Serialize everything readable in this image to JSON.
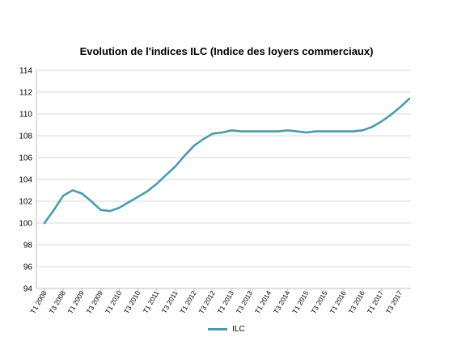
{
  "chart_data": {
    "type": "line",
    "title": "Evolution de l'indices ILC (Indice des loyers commerciaux)",
    "xlabel": "",
    "ylabel": "",
    "ylim": [
      94,
      114
    ],
    "yticks": [
      94,
      96,
      98,
      100,
      102,
      104,
      106,
      108,
      110,
      112,
      114
    ],
    "grid": true,
    "legend_position": "bottom",
    "x_tick_labels": [
      "T1 2008",
      "T3 2008",
      "T1 2009",
      "T3 2009",
      "T1 2010",
      "T3 2010",
      "T1 2011",
      "T3 2011",
      "T1 2012",
      "T3 2012",
      "T1 2013",
      "T3 2013",
      "T1 2014",
      "T3 2014",
      "T1 2015",
      "T3 2015",
      "T1 2016",
      "T3 2016",
      "T1 2017",
      "T3 2017"
    ],
    "x": [
      "T1 2008",
      "T2 2008",
      "T3 2008",
      "T4 2008",
      "T1 2009",
      "T2 2009",
      "T3 2009",
      "T4 2009",
      "T1 2010",
      "T2 2010",
      "T3 2010",
      "T4 2010",
      "T1 2011",
      "T2 2011",
      "T3 2011",
      "T4 2011",
      "T1 2012",
      "T2 2012",
      "T3 2012",
      "T4 2012",
      "T1 2013",
      "T2 2013",
      "T3 2013",
      "T4 2013",
      "T1 2014",
      "T2 2014",
      "T3 2014",
      "T4 2014",
      "T1 2015",
      "T2 2015",
      "T3 2015",
      "T4 2015",
      "T1 2016",
      "T2 2016",
      "T3 2016",
      "T4 2016",
      "T1 2017",
      "T2 2017",
      "T3 2017",
      "T4 2017"
    ],
    "series": [
      {
        "name": "ILC",
        "color": "#4A9BAE",
        "values": [
          100.0,
          101.2,
          102.5,
          103.0,
          102.7,
          102.0,
          101.2,
          101.1,
          101.4,
          101.9,
          102.4,
          102.9,
          103.6,
          104.4,
          105.2,
          106.2,
          107.1,
          107.7,
          108.2,
          108.3,
          108.5,
          108.4,
          108.4,
          108.4,
          108.4,
          108.4,
          108.5,
          108.4,
          108.3,
          108.4,
          108.4,
          108.4,
          108.4,
          108.4,
          108.5,
          108.8,
          109.3,
          109.9,
          110.6,
          111.4
        ]
      }
    ]
  }
}
